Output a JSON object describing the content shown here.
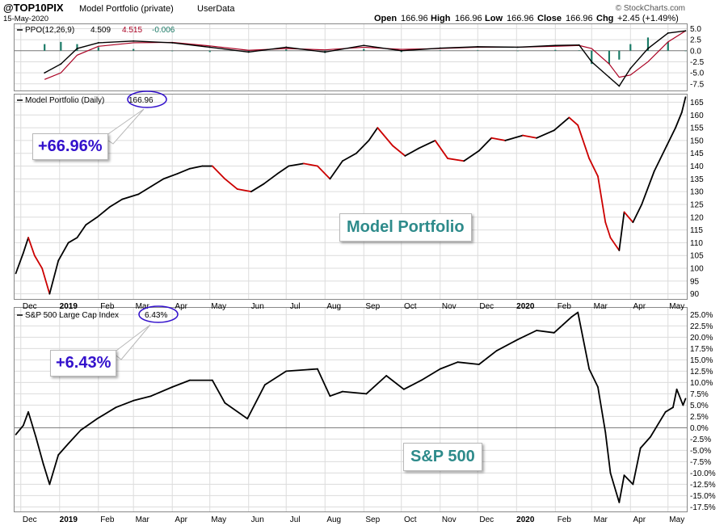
{
  "header": {
    "symbol": "@TOP10PIX",
    "name": "Model Portfolio (private)",
    "source": "UserData",
    "date": "15-May-2020",
    "open_label": "Open",
    "open": "166.96",
    "high_label": "High",
    "high": "166.96",
    "low_label": "Low",
    "low": "166.96",
    "close_label": "Close",
    "close": "166.96",
    "chg_label": "Chg",
    "chg": "+2.45 (+1.49%)",
    "brand": "© StockCharts.com"
  },
  "ppo_panel": {
    "label": "PPO(12,26,9)",
    "ppo_value": "4.509",
    "signal_value": "4.515",
    "histogram_value": "-0.006",
    "yticks": [
      "5.0",
      "2.5",
      "0.0",
      "-2.5",
      "-5.0",
      "-7.5"
    ]
  },
  "price_panel": {
    "label": "Model Portfolio (Daily)",
    "value": "166.96",
    "yticks": [
      "165",
      "160",
      "155",
      "150",
      "145",
      "140",
      "135",
      "130",
      "125",
      "120",
      "115",
      "110",
      "105",
      "100",
      "95",
      "90"
    ]
  },
  "sp_panel": {
    "label": "S&P 500 Large Cap Index",
    "value": "6.43%",
    "yticks": [
      "25.0%",
      "22.5%",
      "20.0%",
      "17.5%",
      "15.0%",
      "12.5%",
      "10.0%",
      "7.5%",
      "5.0%",
      "2.5%",
      "0.0%",
      "-2.5%",
      "-5.0%",
      "-7.5%",
      "-10.0%",
      "-12.5%",
      "-15.0%",
      "-17.5%"
    ]
  },
  "x_axis_labels": [
    "Dec",
    "2019",
    "Feb",
    "Mar",
    "Apr",
    "May",
    "Jun",
    "Jul",
    "Aug",
    "Sep",
    "Oct",
    "Nov",
    "Dec",
    "2020",
    "Feb",
    "Mar",
    "Apr",
    "May"
  ],
  "callouts": {
    "portfolio_pct": "+66.96%",
    "sp_pct": "+6.43%",
    "portfolio_label": "Model Portfolio",
    "sp_label": "S&P 500"
  },
  "colors": {
    "up_line": "#000000",
    "down_line": "#cc0000",
    "signal_line": "#aa0022",
    "histogram": "#1a7a66",
    "callout_text": "#3311cc",
    "panel_label": "#2e8b8b",
    "grid": "#dcdcdc",
    "circle": "#3311cc"
  },
  "chart_data": [
    {
      "type": "line",
      "title": "PPO(12,26,9)",
      "x": [
        "2018-12-20",
        "2019-01-02",
        "2019-01-15",
        "2019-02-01",
        "2019-03-01",
        "2019-04-01",
        "2019-05-01",
        "2019-06-01",
        "2019-07-01",
        "2019-08-01",
        "2019-09-01",
        "2019-10-01",
        "2019-11-01",
        "2019-12-01",
        "2020-01-02",
        "2020-02-01",
        "2020-02-20",
        "2020-03-01",
        "2020-03-15",
        "2020-03-23",
        "2020-04-01",
        "2020-04-15",
        "2020-05-01",
        "2020-05-15"
      ],
      "series": [
        {
          "name": "PPO",
          "values": [
            -5.0,
            -3.0,
            0.5,
            1.8,
            2.2,
            1.8,
            0.8,
            -0.3,
            0.8,
            -0.3,
            1.2,
            0.0,
            0.6,
            0.9,
            0.8,
            1.2,
            1.3,
            -2.5,
            -6.0,
            -8.0,
            -4.0,
            0.5,
            4.0,
            4.5
          ]
        },
        {
          "name": "Signal",
          "values": [
            -6.5,
            -5.0,
            -1.0,
            1.0,
            1.8,
            1.9,
            1.1,
            0.1,
            0.5,
            0.2,
            0.8,
            0.3,
            0.5,
            0.8,
            0.8,
            1.0,
            1.2,
            0.5,
            -3.0,
            -6.0,
            -5.5,
            -2.5,
            2.0,
            4.5
          ]
        },
        {
          "name": "Histogram",
          "values": [
            1.5,
            2.0,
            1.5,
            0.8,
            0.4,
            -0.1,
            -0.3,
            -0.4,
            0.3,
            -0.5,
            0.4,
            -0.3,
            0.1,
            0.1,
            0.0,
            0.2,
            0.1,
            -3.0,
            -3.0,
            -2.0,
            1.5,
            3.0,
            2.0,
            -0.006
          ]
        }
      ],
      "ylim": [
        -9,
        6
      ]
    },
    {
      "type": "line",
      "title": "Model Portfolio (Daily)",
      "x": [
        "2018-11-27",
        "2018-12-03",
        "2018-12-07",
        "2018-12-12",
        "2018-12-18",
        "2018-12-24",
        "2018-12-31",
        "2019-01-08",
        "2019-01-15",
        "2019-01-22",
        "2019-01-31",
        "2019-02-10",
        "2019-02-20",
        "2019-03-05",
        "2019-03-15",
        "2019-03-25",
        "2019-04-05",
        "2019-04-15",
        "2019-04-25",
        "2019-05-03",
        "2019-05-13",
        "2019-05-23",
        "2019-06-03",
        "2019-06-13",
        "2019-06-24",
        "2019-07-03",
        "2019-07-15",
        "2019-07-26",
        "2019-08-05",
        "2019-08-15",
        "2019-08-26",
        "2019-09-05",
        "2019-09-12",
        "2019-09-24",
        "2019-10-04",
        "2019-10-15",
        "2019-10-28",
        "2019-11-07",
        "2019-11-20",
        "2019-12-02",
        "2019-12-12",
        "2019-12-23",
        "2020-01-06",
        "2020-01-17",
        "2020-01-31",
        "2020-02-12",
        "2020-02-19",
        "2020-02-28",
        "2020-03-06",
        "2020-03-12",
        "2020-03-16",
        "2020-03-23",
        "2020-03-27",
        "2020-04-03",
        "2020-04-10",
        "2020-04-20",
        "2020-04-30",
        "2020-05-07",
        "2020-05-12",
        "2020-05-15"
      ],
      "values": [
        98,
        106,
        112,
        105,
        100,
        90,
        103,
        110,
        112,
        117,
        120,
        124,
        127,
        129,
        132,
        135,
        137,
        139,
        140,
        140,
        135,
        131,
        130,
        133,
        137,
        140,
        141,
        140,
        135,
        142,
        145,
        150,
        155,
        148,
        144,
        147,
        150,
        143,
        142,
        146,
        151,
        150,
        152,
        151,
        154,
        159,
        156,
        143,
        136,
        118,
        112,
        107,
        122,
        118,
        125,
        138,
        148,
        155,
        161,
        166.96
      ],
      "ylim": [
        88,
        168
      ]
    },
    {
      "type": "line",
      "title": "S&P 500 Large Cap Index",
      "x": [
        "2018-11-27",
        "2018-12-03",
        "2018-12-07",
        "2018-12-13",
        "2018-12-19",
        "2018-12-24",
        "2018-12-31",
        "2019-01-08",
        "2019-01-18",
        "2019-01-31",
        "2019-02-15",
        "2019-03-01",
        "2019-03-15",
        "2019-04-01",
        "2019-04-15",
        "2019-05-03",
        "2019-05-13",
        "2019-05-31",
        "2019-06-14",
        "2019-07-01",
        "2019-07-26",
        "2019-08-05",
        "2019-08-15",
        "2019-09-03",
        "2019-09-19",
        "2019-10-03",
        "2019-10-17",
        "2019-11-01",
        "2019-11-15",
        "2019-12-02",
        "2019-12-16",
        "2020-01-02",
        "2020-01-17",
        "2020-01-31",
        "2020-02-14",
        "2020-02-19",
        "2020-02-28",
        "2020-03-06",
        "2020-03-12",
        "2020-03-16",
        "2020-03-23",
        "2020-03-27",
        "2020-04-03",
        "2020-04-09",
        "2020-04-17",
        "2020-04-29",
        "2020-05-05",
        "2020-05-08",
        "2020-05-13",
        "2020-05-15"
      ],
      "values": [
        -1.5,
        0.5,
        3.5,
        -2.0,
        -8.0,
        -12.5,
        -6.0,
        -3.5,
        -0.5,
        2.0,
        4.5,
        6.0,
        7.0,
        9.0,
        10.5,
        10.5,
        5.5,
        2.0,
        9.5,
        12.5,
        13.0,
        7.0,
        8.0,
        7.5,
        11.5,
        8.5,
        10.5,
        13.0,
        14.5,
        14.0,
        17.0,
        19.5,
        21.5,
        21.0,
        24.5,
        25.5,
        13.0,
        9.0,
        -1.0,
        -10.0,
        -16.5,
        -10.5,
        -12.5,
        -4.5,
        -2.0,
        3.5,
        4.5,
        8.5,
        5.0,
        6.43
      ],
      "ylim": [
        -18.5,
        26.5
      ]
    }
  ]
}
